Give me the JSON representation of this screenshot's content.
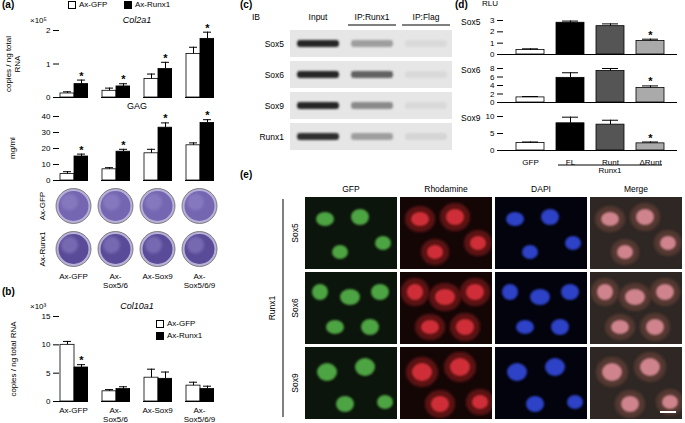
{
  "chart_data": [
    {
      "panel": "(a)",
      "type": "bar",
      "title": "Col2a1",
      "y_label": "copies / ng total RNA",
      "y_multiplier": "×10⁵",
      "categories": [
        "Ax-GFP",
        "Ax-Sox5/6",
        "Ax-Sox9",
        "Ax-Sox5/6/9"
      ],
      "series": [
        {
          "name": "Ax-GFP",
          "color": "#ffffff",
          "values": [
            0.12,
            0.2,
            0.55,
            1.3
          ],
          "errors": [
            0.05,
            0.08,
            0.15,
            0.2
          ],
          "annotations": [
            null,
            null,
            null,
            null
          ]
        },
        {
          "name": "Ax-Runx1",
          "color": "#000000",
          "values": [
            0.4,
            0.33,
            0.85,
            1.75
          ],
          "errors": [
            0.12,
            0.08,
            0.2,
            0.2
          ],
          "annotations": [
            "*",
            "*",
            "*",
            "*"
          ]
        }
      ],
      "ylim": [
        0,
        2
      ],
      "yticks": [
        0,
        1,
        2
      ],
      "tick_labels": "y",
      "legend": "top"
    },
    {
      "type": "bar",
      "title": "GAG",
      "y_label": "mg/ml",
      "categories": [
        "Ax-GFP",
        "Ax-Sox5/6",
        "Ax-Sox9",
        "Ax-Sox5/6/9"
      ],
      "series": [
        {
          "name": "Ax-GFP",
          "color": "#ffffff",
          "values": [
            4,
            7,
            17,
            22
          ],
          "errors": [
            1.5,
            1,
            2.5,
            1.5
          ],
          "annotations": [
            null,
            null,
            null,
            null
          ]
        },
        {
          "name": "Ax-Runx1",
          "color": "#000000",
          "values": [
            15,
            18,
            33,
            36
          ],
          "errors": [
            1.5,
            1.5,
            3,
            2
          ],
          "annotations": [
            "*",
            "*",
            "*",
            "*"
          ]
        }
      ],
      "ylim": [
        0,
        40
      ],
      "yticks": [
        0,
        10,
        20,
        30,
        40
      ],
      "tick_labels": "y"
    },
    {
      "panel": "(b)",
      "type": "bar",
      "title": "Col10a1",
      "y_label": "copies / ng total RNA",
      "y_multiplier": "×10³",
      "categories": [
        "Ax-GFP",
        "Ax-Sox5/6",
        "Ax-Sox9",
        "Ax-Sox5/6/9"
      ],
      "series": [
        {
          "name": "Ax-GFP",
          "color": "#ffffff",
          "values": [
            10,
            1.8,
            4.2,
            2.8
          ],
          "errors": [
            0.6,
            0.3,
            1.5,
            0.6
          ],
          "annotations": [
            null,
            null,
            null,
            null
          ]
        },
        {
          "name": "Ax-Runx1",
          "color": "#000000",
          "values": [
            6,
            2.2,
            4,
            2.2
          ],
          "errors": [
            0.5,
            0.4,
            1.2,
            0.5
          ],
          "annotations": [
            "*",
            null,
            null,
            null
          ]
        }
      ],
      "ylim": [
        0,
        15
      ],
      "yticks": [
        0,
        5,
        10,
        15
      ],
      "tick_labels": true,
      "legend": "top-right"
    },
    {
      "panel": "(d)",
      "type": "bar",
      "title": "Sox5",
      "y_label": "RLU",
      "categories": [
        "GFP",
        "FL",
        "Runt",
        "ΔRunt"
      ],
      "values": [
        0.4,
        2.8,
        2.5,
        1.2
      ],
      "errors": [
        0.1,
        0.15,
        0.2,
        0.15
      ],
      "annotations": [
        null,
        null,
        null,
        "*"
      ],
      "colors": [
        "#ffffff",
        "#000000",
        "#555555",
        "#aaaaaa"
      ],
      "ylim": [
        0,
        3
      ],
      "yticks": [
        0,
        1,
        2,
        3
      ],
      "tick_labels": "y"
    },
    {
      "type": "bar",
      "title": "Sox6",
      "categories": [
        "GFP",
        "FL",
        "Runt",
        "ΔRunt"
      ],
      "values": [
        1.2,
        5.8,
        7.4,
        3.4
      ],
      "errors": [
        0.2,
        1.2,
        0.6,
        0.5
      ],
      "annotations": [
        null,
        null,
        null,
        "*"
      ],
      "colors": [
        "#ffffff",
        "#000000",
        "#555555",
        "#aaaaaa"
      ],
      "ylim": [
        0,
        8
      ],
      "yticks": [
        0,
        2,
        4,
        6,
        8
      ],
      "tick_labels": "y"
    },
    {
      "type": "bar",
      "title": "Sox9",
      "categories": [
        "GFP",
        "FL",
        "Runt",
        "ΔRunt"
      ],
      "values": [
        2.2,
        8,
        7.6,
        2.1
      ],
      "errors": [
        0.3,
        1.8,
        1.3,
        0.4
      ],
      "annotations": [
        null,
        null,
        null,
        "*"
      ],
      "colors": [
        "#ffffff",
        "#000000",
        "#555555",
        "#aaaaaa"
      ],
      "ylim": [
        0,
        10
      ],
      "yticks": [
        0,
        5,
        10
      ],
      "tick_labels": true,
      "category_group": {
        "label": "Runx1",
        "categories": [
          "FL",
          "Runt",
          "ΔRunt"
        ]
      }
    }
  ],
  "dishes": {
    "rows": [
      "Ax-GFP",
      "Ax-Runx1"
    ]
  },
  "blot": {
    "panel": "(c)",
    "header": "IB",
    "columns": [
      "Input",
      "IP:Runx1",
      "IP:Flag"
    ],
    "rows": [
      "Sox5",
      "Sox6",
      "Sox9",
      "Runx1"
    ]
  },
  "microscopy": {
    "panel": "(e)",
    "group": "Runx1",
    "columns": [
      "GFP",
      "Rhodamine",
      "DAPI",
      "Merge"
    ],
    "rows": [
      "Sox5",
      "Sox6",
      "Sox9"
    ]
  }
}
